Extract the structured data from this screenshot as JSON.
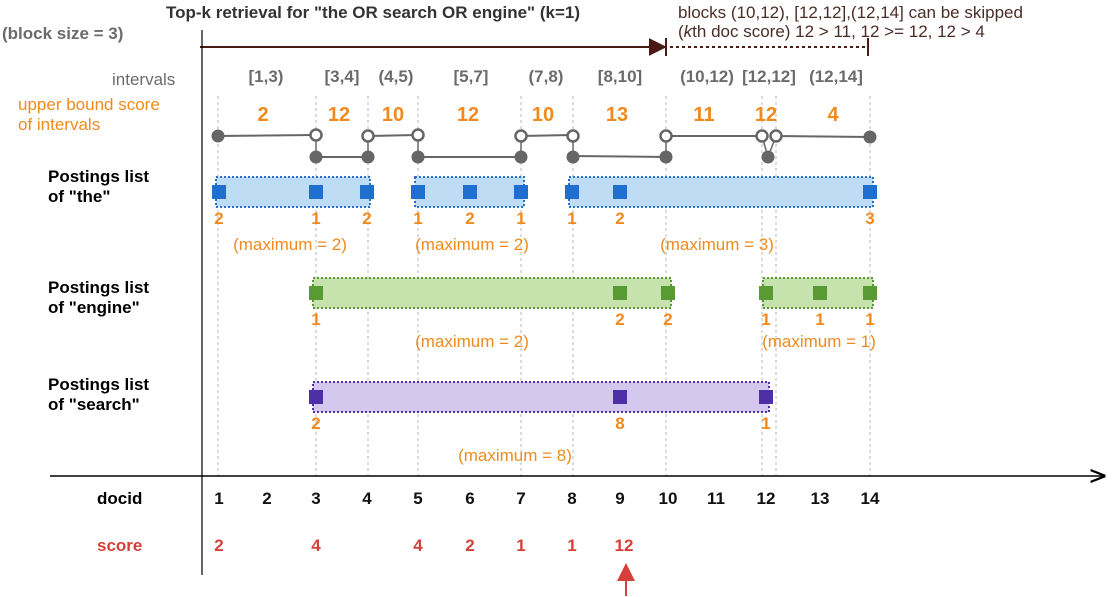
{
  "title": "Top-k retrieval for \"the OR search OR engine\" (k=1)",
  "block_size": "(block size = 3)",
  "skip_note": {
    "line1": "blocks (10,12), [12,12],(12,14] can be skipped",
    "line2_k": "k",
    "line2_rest": "th doc score) 12 > 11, 12 >= 12, 12 > 4",
    "line2_open": "("
  },
  "intervals_label": "intervals",
  "upper_bound_label": [
    "upper bound score",
    "of intervals"
  ],
  "intervals": [
    {
      "label": "[1,3)",
      "ub": "2"
    },
    {
      "label": "[3,4]",
      "ub": "12"
    },
    {
      "label": "(4,5)",
      "ub": "10"
    },
    {
      "label": "[5,7]",
      "ub": "12"
    },
    {
      "label": "(7,8)",
      "ub": "10"
    },
    {
      "label": "[8,10]",
      "ub": "13"
    },
    {
      "label": "(10,12)",
      "ub": "11"
    },
    {
      "label": "[12,12]",
      "ub": "12"
    },
    {
      "label": "(12,14]",
      "ub": "4"
    }
  ],
  "postings": [
    {
      "label": [
        "Postings list",
        "of \"the\""
      ],
      "color": "#1e6fd0",
      "fill": "#bfdcf5",
      "border": "#2a70c8",
      "entries": [
        {
          "doc": 1,
          "tf": "2"
        },
        {
          "doc": 3,
          "tf": "1"
        },
        {
          "doc": 4,
          "tf": "2"
        },
        {
          "doc": 5,
          "tf": "1"
        },
        {
          "doc": 6,
          "tf": "2"
        },
        {
          "doc": 7,
          "tf": "1"
        },
        {
          "doc": 8,
          "tf": "1"
        },
        {
          "doc": 9,
          "tf": "2"
        },
        {
          "doc": 14,
          "tf": "3"
        }
      ],
      "blocks": [
        {
          "from": 1,
          "to": 4,
          "max": "(maximum = 2)"
        },
        {
          "from": 5,
          "to": 7,
          "max": "(maximum = 2)"
        },
        {
          "from": 8,
          "to": 14,
          "max": "(maximum = 3)"
        }
      ]
    },
    {
      "label": [
        "Postings list",
        "of \"engine\""
      ],
      "color": "#5a9a35",
      "fill": "#c6e2ad",
      "border": "#5a9a35",
      "entries": [
        {
          "doc": 3,
          "tf": "1"
        },
        {
          "doc": 9,
          "tf": "2"
        },
        {
          "doc": 10,
          "tf": "2"
        },
        {
          "doc": 12,
          "tf": "1"
        },
        {
          "doc": 13,
          "tf": "1"
        },
        {
          "doc": 14,
          "tf": "1"
        }
      ],
      "blocks": [
        {
          "from": 3,
          "to": 10,
          "max": "(maximum = 2)"
        },
        {
          "from": 12,
          "to": 14,
          "max": "(maximum = 1)"
        }
      ]
    },
    {
      "label": [
        "Postings list",
        "of \"search\""
      ],
      "color": "#4f2fa6",
      "fill": "#d5c8ee",
      "border": "#4f2fa6",
      "entries": [
        {
          "doc": 3,
          "tf": "2"
        },
        {
          "doc": 9,
          "tf": "8"
        },
        {
          "doc": 12,
          "tf": "1"
        }
      ],
      "blocks": [
        {
          "from": 3,
          "to": 12,
          "max": "(maximum = 8)"
        }
      ]
    }
  ],
  "docid_label": "docid",
  "docids": [
    "1",
    "2",
    "3",
    "4",
    "5",
    "6",
    "7",
    "8",
    "9",
    "10",
    "11",
    "12",
    "13",
    "14"
  ],
  "score_label": "score",
  "scores": [
    {
      "doc": 1,
      "value": "2"
    },
    {
      "doc": 3,
      "value": "4"
    },
    {
      "doc": 5,
      "value": "4"
    },
    {
      "doc": 6,
      "value": "2"
    },
    {
      "doc": 7,
      "value": "1"
    },
    {
      "doc": 8,
      "value": "1"
    },
    {
      "doc": 9,
      "value": "12"
    }
  ],
  "colors": {
    "orange": "#f08a1c",
    "score_red": "#d6403a",
    "arrow_dark": "#4a1a14",
    "node_gray": "#666666"
  }
}
